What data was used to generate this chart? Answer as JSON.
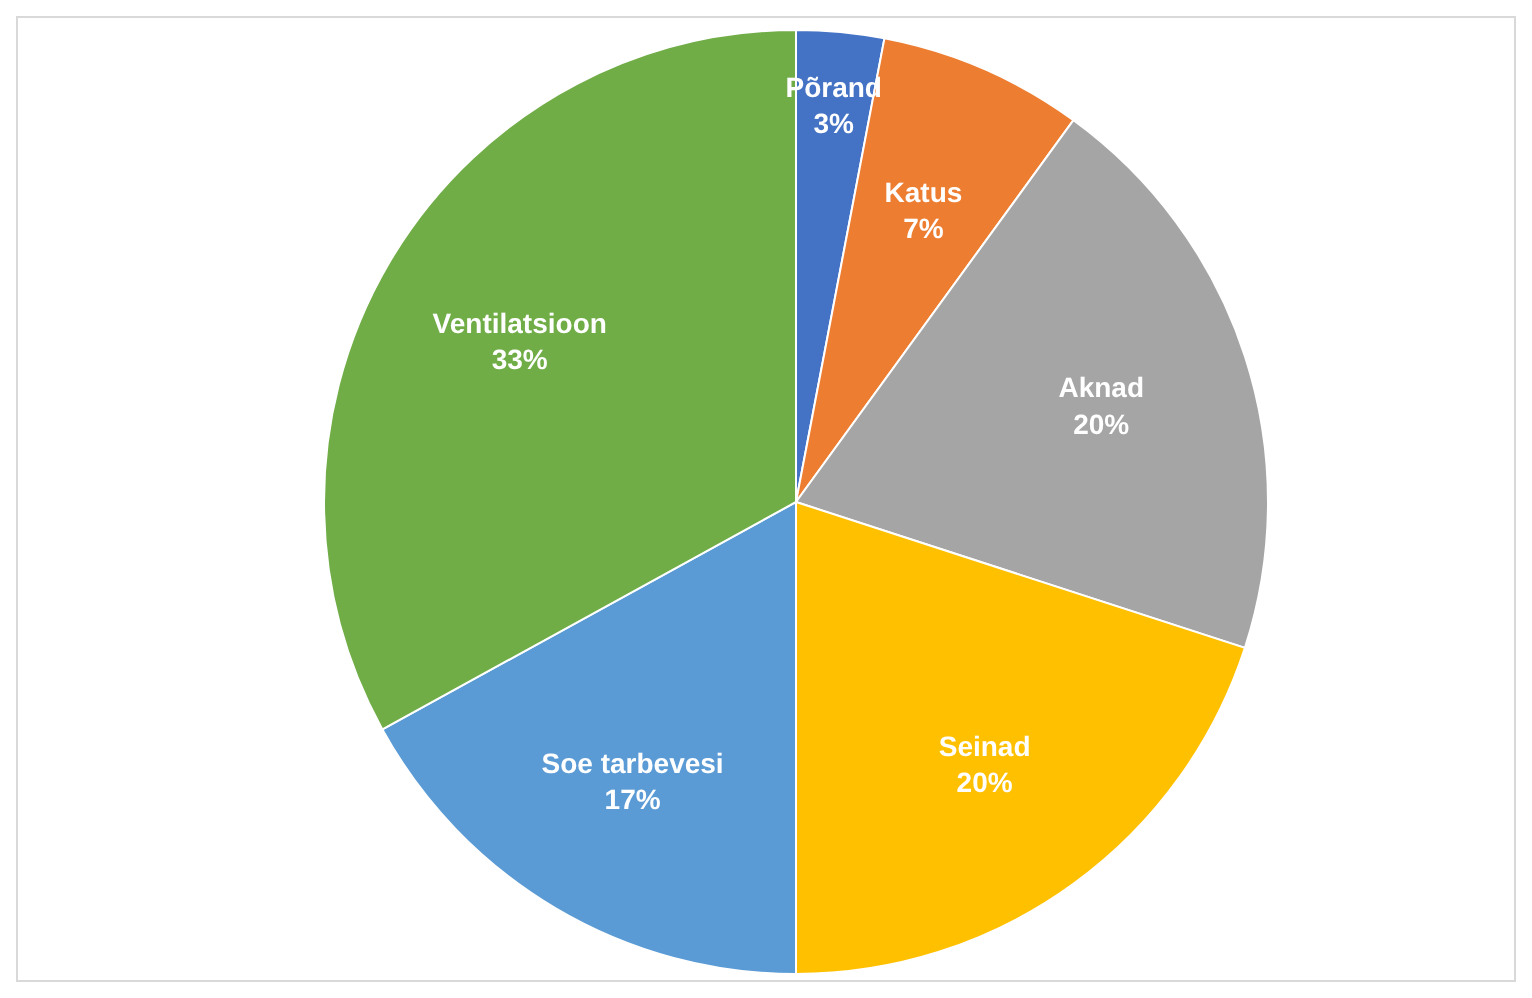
{
  "chart_data": {
    "type": "pie",
    "categories": [
      "Põrand",
      "Katus",
      "Aknad",
      "Seinad",
      "Soe tarbevesi",
      "Ventilatsioon"
    ],
    "values": [
      3,
      7,
      20,
      20,
      17,
      33
    ],
    "colors": [
      "#4472c4",
      "#ed7d31",
      "#a5a5a5",
      "#ffc000",
      "#5b9bd5",
      "#70ad47"
    ],
    "value_labels": [
      "3%",
      "7%",
      "20%",
      "20%",
      "17%",
      "33%"
    ]
  }
}
